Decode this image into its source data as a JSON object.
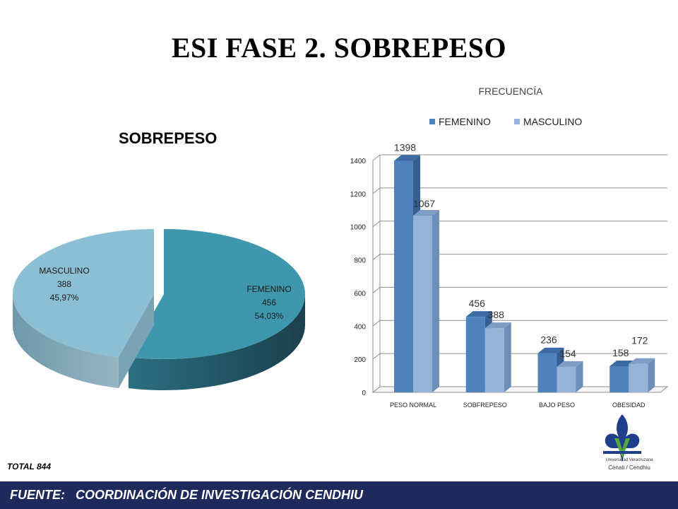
{
  "slide": {
    "title": "ESI FASE 2. SOBREPESO",
    "total_label": "TOTAL  844",
    "footer": "FUENTE:   COORDINACIÓN DE INVESTIGACIÓN CENDHIU"
  },
  "logo": {
    "line1": "Universidad Veracruzana",
    "line2": "Cenati / Cendhiu"
  },
  "chart_data": [
    {
      "type": "pie",
      "title": "SOBREPESO",
      "slices": [
        {
          "label": "FEMENINO",
          "value": 456,
          "percent_label": "54,03%",
          "color": "#3e97ad"
        },
        {
          "label": "MASCULINO",
          "value": 388,
          "percent_label": "45,97%",
          "color": "#8cbfd4"
        }
      ]
    },
    {
      "type": "bar",
      "title": "FRECUENCÍA",
      "categories": [
        "PESO NORMAL",
        "SOBFREPESO",
        "BAJO PESO",
        "OBESIDAD"
      ],
      "series": [
        {
          "name": "FEMENINO",
          "values": [
            1398,
            456,
            236,
            158
          ],
          "color": "#4f81bd"
        },
        {
          "name": "MASCULINO",
          "values": [
            1067,
            388,
            154,
            172
          ],
          "color": "#95b3d7"
        }
      ],
      "ylim": [
        0,
        1400
      ],
      "yticks": [
        0,
        200,
        400,
        600,
        800,
        1000,
        1200,
        1400
      ],
      "legend": "top",
      "grid": true
    }
  ]
}
